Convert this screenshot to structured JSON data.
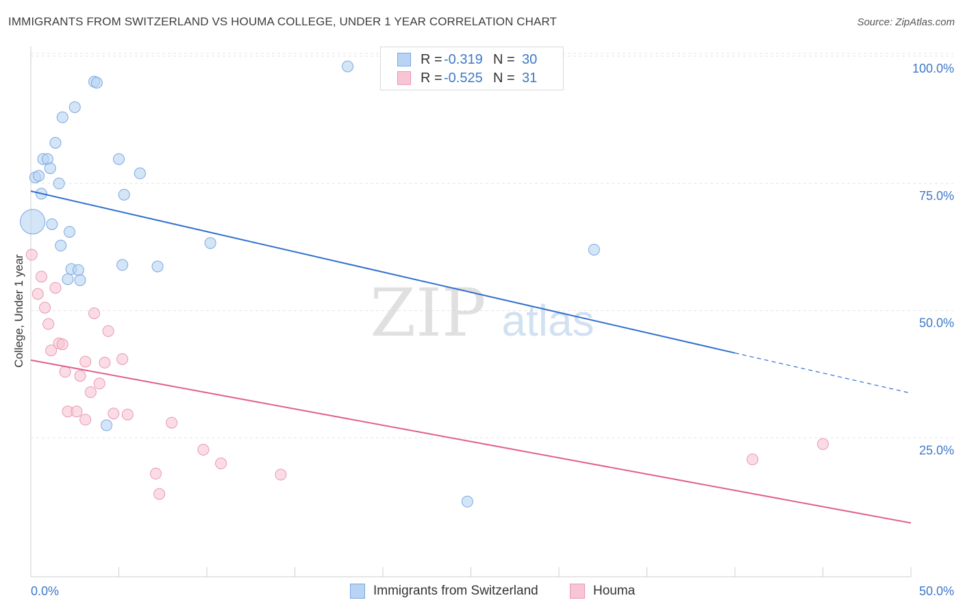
{
  "title": "IMMIGRANTS FROM SWITZERLAND VS HOUMA COLLEGE, UNDER 1 YEAR CORRELATION CHART",
  "source": "Source: ZipAtlas.com",
  "watermark": {
    "zip": "ZIP",
    "atlas": "atlas"
  },
  "legend": {
    "rows": [
      {
        "r_label": "R =",
        "r_value": "-0.319",
        "n_label": "N =",
        "n_value": "30"
      },
      {
        "r_label": "R =",
        "r_value": "-0.525",
        "n_label": "N =",
        "n_value": "31"
      }
    ]
  },
  "bottom_legend": [
    "Immigrants from Switzerland",
    "Houma"
  ],
  "colors": {
    "blue_fill": "#b8d3f3",
    "blue_stroke": "#7aa8df",
    "blue_line": "#2f6fcf",
    "pink_fill": "#f8c5d4",
    "pink_stroke": "#e898b0",
    "pink_line": "#e0608c",
    "tick_label": "#3d78c8",
    "grid": "#e3e3e3"
  },
  "chart_data": {
    "type": "scatter",
    "title": "IMMIGRANTS FROM SWITZERLAND VS HOUMA COLLEGE, UNDER 1 YEAR CORRELATION CHART",
    "xlabel": "",
    "ylabel": "College, Under 1 year",
    "xlim": [
      0,
      50
    ],
    "ylim": [
      0,
      105
    ],
    "x_tick_labels": [
      "0.0%",
      "50.0%"
    ],
    "y_ticks": [
      25,
      50,
      75,
      100
    ],
    "y_tick_labels": [
      "25.0%",
      "50.0%",
      "75.0%",
      "100.0%"
    ],
    "grid": true,
    "legend_position": "top-center",
    "series": [
      {
        "name": "Immigrants from Switzerland",
        "r": -0.319,
        "n": 30,
        "trend": {
          "x0": 0,
          "y0": 75.5,
          "x1": 40,
          "y1": 43.7,
          "dashed_to_x": 50,
          "dashed_to_y": 35.8
        },
        "points": [
          {
            "x": 0.1,
            "y": 69.5,
            "big": true
          },
          {
            "x": 0.25,
            "y": 78.2
          },
          {
            "x": 0.45,
            "y": 78.5
          },
          {
            "x": 0.6,
            "y": 75
          },
          {
            "x": 0.7,
            "y": 81.8
          },
          {
            "x": 0.95,
            "y": 81.8
          },
          {
            "x": 1.1,
            "y": 80
          },
          {
            "x": 1.2,
            "y": 69
          },
          {
            "x": 1.4,
            "y": 85
          },
          {
            "x": 1.6,
            "y": 77
          },
          {
            "x": 1.7,
            "y": 64.8
          },
          {
            "x": 1.8,
            "y": 90
          },
          {
            "x": 2.2,
            "y": 67.5
          },
          {
            "x": 2.1,
            "y": 58.2
          },
          {
            "x": 2.3,
            "y": 60.2
          },
          {
            "x": 2.5,
            "y": 92
          },
          {
            "x": 2.7,
            "y": 60
          },
          {
            "x": 2.8,
            "y": 58
          },
          {
            "x": 3.6,
            "y": 97
          },
          {
            "x": 3.75,
            "y": 96.8
          },
          {
            "x": 4.3,
            "y": 29.5
          },
          {
            "x": 5.0,
            "y": 81.8
          },
          {
            "x": 5.2,
            "y": 61
          },
          {
            "x": 5.3,
            "y": 74.8
          },
          {
            "x": 6.2,
            "y": 79
          },
          {
            "x": 7.2,
            "y": 60.7
          },
          {
            "x": 10.2,
            "y": 65.3
          },
          {
            "x": 18.0,
            "y": 100
          },
          {
            "x": 24.8,
            "y": 14.5
          },
          {
            "x": 32.0,
            "y": 64
          }
        ]
      },
      {
        "name": "Houma",
        "r": -0.525,
        "n": 31,
        "trend": {
          "x0": 0,
          "y0": 42.3,
          "x1": 50,
          "y1": 10.3
        },
        "points": [
          {
            "x": 0.05,
            "y": 63
          },
          {
            "x": 0.4,
            "y": 55.3
          },
          {
            "x": 0.6,
            "y": 58.7
          },
          {
            "x": 0.8,
            "y": 52.6
          },
          {
            "x": 1.0,
            "y": 49.4
          },
          {
            "x": 1.15,
            "y": 44.2
          },
          {
            "x": 1.4,
            "y": 56.5
          },
          {
            "x": 1.6,
            "y": 45.6
          },
          {
            "x": 1.8,
            "y": 45.4
          },
          {
            "x": 1.95,
            "y": 40
          },
          {
            "x": 2.1,
            "y": 32.2
          },
          {
            "x": 2.6,
            "y": 32.2
          },
          {
            "x": 2.8,
            "y": 39.2
          },
          {
            "x": 3.1,
            "y": 42
          },
          {
            "x": 3.1,
            "y": 30.6
          },
          {
            "x": 3.4,
            "y": 36
          },
          {
            "x": 3.6,
            "y": 51.5
          },
          {
            "x": 3.9,
            "y": 37.7
          },
          {
            "x": 4.2,
            "y": 41.8
          },
          {
            "x": 4.4,
            "y": 48
          },
          {
            "x": 4.7,
            "y": 31.8
          },
          {
            "x": 5.2,
            "y": 42.5
          },
          {
            "x": 5.5,
            "y": 31.6
          },
          {
            "x": 7.1,
            "y": 20
          },
          {
            "x": 7.3,
            "y": 16
          },
          {
            "x": 8.0,
            "y": 30
          },
          {
            "x": 9.8,
            "y": 24.7
          },
          {
            "x": 10.8,
            "y": 22
          },
          {
            "x": 14.2,
            "y": 19.8
          },
          {
            "x": 41.0,
            "y": 22.8
          },
          {
            "x": 45.0,
            "y": 25.8
          }
        ]
      }
    ]
  }
}
